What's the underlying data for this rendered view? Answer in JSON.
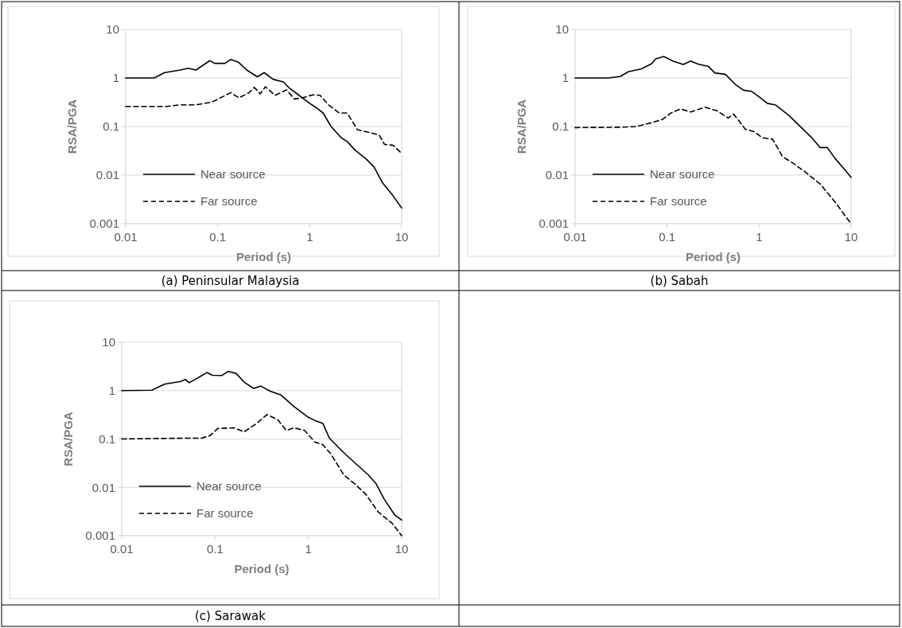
{
  "chart_data": [
    {
      "type": "line",
      "title": "(a) Peninsular Malaysia",
      "xlabel": "Period (s)",
      "ylabel": "RSA/PGA",
      "log": "xy",
      "xlim": [
        0.01,
        10
      ],
      "ylim": [
        0.001,
        10
      ],
      "xticks": [
        0.01,
        0.1,
        1,
        10
      ],
      "yticks": [
        0.001,
        0.01,
        0.1,
        1,
        10
      ],
      "grid": "y",
      "legend": "bottom left",
      "series": [
        {
          "name": "Near source",
          "color": "#000000",
          "line_style": "solid",
          "x": [
            0.01,
            0.0204,
            0.0265,
            0.039,
            0.048,
            0.058,
            0.082,
            0.093,
            0.12,
            0.139,
            0.169,
            0.207,
            0.27,
            0.32,
            0.4,
            0.52,
            0.59,
            0.73,
            1,
            1.16,
            1.4,
            1.71,
            2.2,
            2.56,
            3.1,
            4.1,
            5,
            6.2,
            8.1,
            10
          ],
          "values": [
            1,
            1,
            1.29,
            1.46,
            1.59,
            1.46,
            2.27,
            2,
            2,
            2.41,
            2.1,
            1.46,
            1.06,
            1.29,
            0.94,
            0.83,
            0.64,
            0.47,
            0.3,
            0.25,
            0.19,
            0.1,
            0.059,
            0.049,
            0.033,
            0.0216,
            0.0148,
            0.0069,
            0.0037,
            0.0021
          ]
        },
        {
          "name": "Far source",
          "color": "#000000",
          "line_style": "dashed",
          "x": [
            0.01,
            0.028,
            0.039,
            0.058,
            0.087,
            0.113,
            0.139,
            0.17,
            0.22,
            0.25,
            0.29,
            0.33,
            0.42,
            0.56,
            0.68,
            0.83,
            1.08,
            1.3,
            1.6,
            2.1,
            2.56,
            3.3,
            4.4,
            5.7,
            6.5,
            8.1,
            10
          ],
          "values": [
            0.26,
            0.26,
            0.28,
            0.28,
            0.32,
            0.41,
            0.5,
            0.39,
            0.5,
            0.64,
            0.47,
            0.66,
            0.44,
            0.57,
            0.37,
            0.39,
            0.45,
            0.44,
            0.28,
            0.19,
            0.19,
            0.086,
            0.076,
            0.067,
            0.043,
            0.041,
            0.028
          ]
        }
      ]
    },
    {
      "type": "line",
      "title": "(b) Sabah",
      "xlabel": "Period (s)",
      "ylabel": "RSA/PGA",
      "log": "xy",
      "xlim": [
        0.01,
        10
      ],
      "ylim": [
        0.001,
        10
      ],
      "xticks": [
        0.01,
        0.1,
        1,
        10
      ],
      "yticks": [
        0.001,
        0.01,
        0.1,
        1,
        10
      ],
      "grid": "y",
      "legend": "bottom left",
      "series": [
        {
          "name": "Near source",
          "color": "#000000",
          "line_style": "solid",
          "x": [
            0.01,
            0.023,
            0.031,
            0.038,
            0.052,
            0.068,
            0.075,
            0.092,
            0.116,
            0.15,
            0.18,
            0.22,
            0.28,
            0.33,
            0.43,
            0.56,
            0.68,
            0.83,
            1,
            1.23,
            1.5,
            2.1,
            2.9,
            3.8,
            4.6,
            5.5,
            6.7,
            8.5,
            10
          ],
          "values": [
            1,
            1,
            1.08,
            1.35,
            1.53,
            1.97,
            2.47,
            2.77,
            2.23,
            1.9,
            2.23,
            1.92,
            1.74,
            1.27,
            1.19,
            0.72,
            0.56,
            0.53,
            0.41,
            0.3,
            0.28,
            0.17,
            0.094,
            0.057,
            0.037,
            0.037,
            0.022,
            0.013,
            0.009
          ]
        },
        {
          "name": "Far source",
          "color": "#000000",
          "line_style": "dashed",
          "x": [
            0.01,
            0.033,
            0.046,
            0.068,
            0.089,
            0.11,
            0.14,
            0.18,
            0.26,
            0.35,
            0.46,
            0.53,
            0.71,
            0.89,
            1.08,
            1.4,
            1.8,
            2.3,
            3.1,
            4.6,
            6.9,
            8.5,
            10
          ],
          "values": [
            0.095,
            0.097,
            0.1,
            0.12,
            0.14,
            0.19,
            0.23,
            0.2,
            0.25,
            0.21,
            0.15,
            0.18,
            0.088,
            0.078,
            0.059,
            0.055,
            0.024,
            0.018,
            0.012,
            0.0066,
            0.0026,
            0.0015,
            0.001
          ]
        }
      ]
    },
    {
      "type": "line",
      "title": "(c) Sarawak",
      "xlabel": "Period (s)",
      "ylabel": "RSA/PGA",
      "log": "xy",
      "xlim": [
        0.01,
        10
      ],
      "ylim": [
        0.001,
        10
      ],
      "xticks": [
        0.01,
        0.1,
        1,
        10
      ],
      "yticks": [
        0.001,
        0.01,
        0.1,
        1,
        10
      ],
      "grid": "y",
      "legend": "bottom left",
      "series": [
        {
          "name": "Near source",
          "color": "#000000",
          "line_style": "solid",
          "x": [
            0.01,
            0.021,
            0.029,
            0.043,
            0.048,
            0.053,
            0.063,
            0.082,
            0.094,
            0.118,
            0.138,
            0.168,
            0.205,
            0.26,
            0.31,
            0.39,
            0.51,
            0.7,
            1,
            1.18,
            1.43,
            1.68,
            2.4,
            3.1,
            4.4,
            5.3,
            6.5,
            8.4,
            10
          ],
          "values": [
            1,
            1.02,
            1.37,
            1.55,
            1.7,
            1.46,
            1.76,
            2.36,
            2.08,
            2.05,
            2.5,
            2.27,
            1.5,
            1.11,
            1.24,
            0.97,
            0.81,
            0.47,
            0.28,
            0.24,
            0.21,
            0.104,
            0.052,
            0.033,
            0.018,
            0.012,
            0.0057,
            0.0027,
            0.0021
          ]
        },
        {
          "name": "Far source",
          "color": "#000000",
          "line_style": "dashed",
          "x": [
            0.01,
            0.048,
            0.072,
            0.089,
            0.107,
            0.16,
            0.205,
            0.28,
            0.36,
            0.47,
            0.58,
            0.7,
            0.91,
            1.18,
            1.43,
            1.74,
            2.4,
            3.1,
            4.1,
            5.6,
            7.9,
            10
          ],
          "values": [
            0.1,
            0.104,
            0.104,
            0.118,
            0.165,
            0.17,
            0.14,
            0.21,
            0.32,
            0.25,
            0.15,
            0.17,
            0.15,
            0.086,
            0.076,
            0.049,
            0.018,
            0.012,
            0.0073,
            0.0031,
            0.0018,
            0.001
          ]
        }
      ]
    }
  ]
}
